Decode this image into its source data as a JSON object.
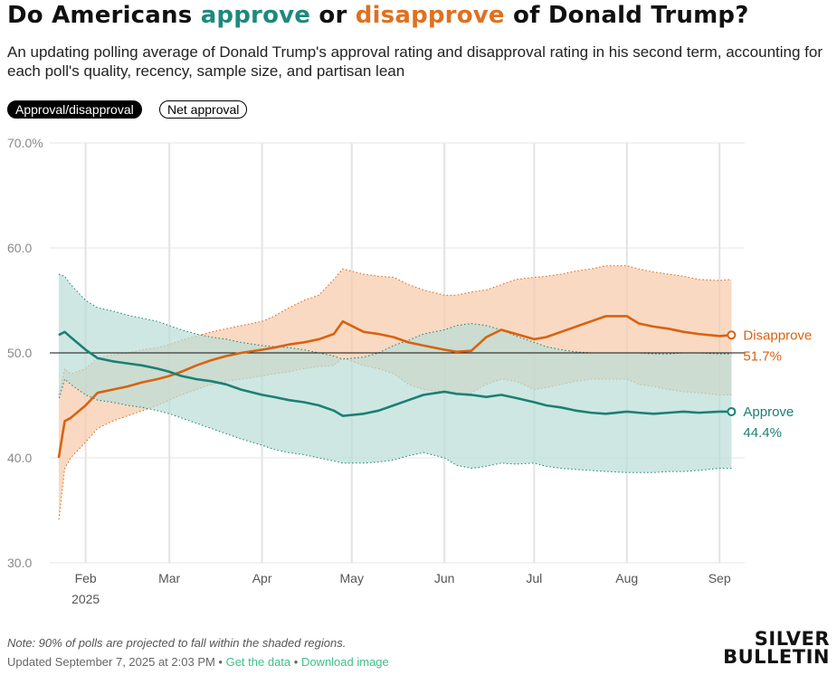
{
  "header": {
    "title_part1": "Do Americans ",
    "title_approve": "approve",
    "title_or": " or ",
    "title_disapprove": "disapprove",
    "title_part2": " of Donald Trump?",
    "subtitle": "An updating polling average of Donald Trump's approval rating and disapproval rating in his second term, accounting for each poll's quality, recency, sample size, and partisan lean"
  },
  "toggles": {
    "active_label": "Approval/disapproval",
    "inactive_label": "Net approval"
  },
  "colors": {
    "approve": "#1b8074",
    "disapprove": "#d9620e",
    "approve_band": "#b9ddd6",
    "disapprove_band": "#f7c9a8"
  },
  "chart_data": {
    "type": "line",
    "title": "Do Americans approve or disapprove of Donald Trump?",
    "y_tick_labels": [
      "70.0%",
      "60.0",
      "50.0",
      "40.0",
      "30.0"
    ],
    "y_ticks": [
      70,
      60,
      50,
      40,
      30
    ],
    "ylim": [
      30,
      70
    ],
    "xlim": [
      "2025-01-20",
      "2025-09-07"
    ],
    "x_ticks": [
      {
        "date": "2025-02-01",
        "label": "Feb",
        "sublabel": "2025"
      },
      {
        "date": "2025-03-01",
        "label": "Mar",
        "sublabel": ""
      },
      {
        "date": "2025-04-01",
        "label": "Apr",
        "sublabel": ""
      },
      {
        "date": "2025-05-01",
        "label": "May",
        "sublabel": ""
      },
      {
        "date": "2025-06-01",
        "label": "Jun",
        "sublabel": ""
      },
      {
        "date": "2025-07-01",
        "label": "Jul",
        "sublabel": ""
      },
      {
        "date": "2025-08-01",
        "label": "Aug",
        "sublabel": ""
      },
      {
        "date": "2025-09-01",
        "label": "Sep",
        "sublabel": ""
      }
    ],
    "reference_line": 50,
    "grid": true,
    "series": [
      {
        "name": "Disapprove",
        "end_label": "Disapprove",
        "end_value_label": "51.7%",
        "x": [
          "2025-01-23",
          "2025-01-25",
          "2025-01-27",
          "2025-02-01",
          "2025-02-05",
          "2025-02-10",
          "2025-02-15",
          "2025-02-20",
          "2025-02-25",
          "2025-03-01",
          "2025-03-05",
          "2025-03-10",
          "2025-03-15",
          "2025-03-20",
          "2025-03-25",
          "2025-04-01",
          "2025-04-05",
          "2025-04-10",
          "2025-04-15",
          "2025-04-20",
          "2025-04-25",
          "2025-04-28",
          "2025-05-05",
          "2025-05-10",
          "2025-05-15",
          "2025-05-20",
          "2025-05-25",
          "2025-06-01",
          "2025-06-05",
          "2025-06-10",
          "2025-06-15",
          "2025-06-20",
          "2025-06-25",
          "2025-07-01",
          "2025-07-05",
          "2025-07-10",
          "2025-07-15",
          "2025-07-20",
          "2025-07-25",
          "2025-08-01",
          "2025-08-05",
          "2025-08-10",
          "2025-08-15",
          "2025-08-20",
          "2025-08-25",
          "2025-09-01",
          "2025-09-05"
        ],
        "values": [
          40.0,
          43.5,
          43.8,
          45.0,
          46.2,
          46.5,
          46.8,
          47.2,
          47.5,
          47.8,
          48.2,
          48.8,
          49.3,
          49.7,
          50.0,
          50.3,
          50.5,
          50.8,
          51.0,
          51.3,
          51.8,
          53.0,
          52.0,
          51.8,
          51.5,
          51.0,
          50.7,
          50.3,
          50.1,
          50.2,
          51.5,
          52.2,
          51.8,
          51.3,
          51.5,
          52.0,
          52.5,
          53.0,
          53.5,
          53.5,
          52.8,
          52.5,
          52.3,
          52.0,
          51.8,
          51.6,
          51.7
        ],
        "lower": [
          34.0,
          39.0,
          40.0,
          41.5,
          42.8,
          43.5,
          44.0,
          44.5,
          45.0,
          45.5,
          46.0,
          46.5,
          47.0,
          47.3,
          47.5,
          47.8,
          48.0,
          48.2,
          48.5,
          48.7,
          48.8,
          49.5,
          48.8,
          48.5,
          48.0,
          47.0,
          46.5,
          46.3,
          46.0,
          46.2,
          47.0,
          47.5,
          47.3,
          46.5,
          46.7,
          47.0,
          47.3,
          47.5,
          47.5,
          47.5,
          47.0,
          46.8,
          46.5,
          46.3,
          46.2,
          46.0,
          46.0
        ],
        "upper": [
          46.0,
          48.5,
          48.0,
          48.5,
          49.5,
          49.8,
          50.0,
          50.3,
          50.5,
          50.8,
          51.2,
          51.6,
          52.0,
          52.3,
          52.6,
          53.0,
          53.5,
          54.3,
          55.0,
          55.5,
          57.0,
          58.0,
          57.5,
          57.3,
          57.2,
          56.5,
          56.0,
          55.5,
          55.5,
          55.8,
          56.0,
          56.5,
          57.0,
          57.2,
          57.3,
          57.5,
          57.8,
          58.0,
          58.3,
          58.3,
          58.0,
          57.7,
          57.5,
          57.3,
          57.0,
          56.9,
          57.0
        ]
      },
      {
        "name": "Approve",
        "end_label": "Approve",
        "end_value_label": "44.4%",
        "x": [
          "2025-01-23",
          "2025-01-25",
          "2025-01-27",
          "2025-02-01",
          "2025-02-05",
          "2025-02-10",
          "2025-02-15",
          "2025-02-20",
          "2025-02-25",
          "2025-03-01",
          "2025-03-05",
          "2025-03-10",
          "2025-03-15",
          "2025-03-20",
          "2025-03-25",
          "2025-04-01",
          "2025-04-05",
          "2025-04-10",
          "2025-04-15",
          "2025-04-20",
          "2025-04-25",
          "2025-04-28",
          "2025-05-05",
          "2025-05-10",
          "2025-05-15",
          "2025-05-20",
          "2025-05-25",
          "2025-06-01",
          "2025-06-05",
          "2025-06-10",
          "2025-06-15",
          "2025-06-20",
          "2025-06-25",
          "2025-07-01",
          "2025-07-05",
          "2025-07-10",
          "2025-07-15",
          "2025-07-20",
          "2025-07-25",
          "2025-08-01",
          "2025-08-05",
          "2025-08-10",
          "2025-08-15",
          "2025-08-20",
          "2025-08-25",
          "2025-09-01",
          "2025-09-05"
        ],
        "values": [
          51.7,
          52.0,
          51.5,
          50.3,
          49.5,
          49.2,
          49.0,
          48.8,
          48.5,
          48.2,
          47.8,
          47.5,
          47.3,
          47.0,
          46.5,
          46.0,
          45.8,
          45.5,
          45.3,
          45.0,
          44.5,
          44.0,
          44.2,
          44.5,
          45.0,
          45.5,
          46.0,
          46.3,
          46.1,
          46.0,
          45.8,
          46.0,
          45.7,
          45.3,
          45.0,
          44.8,
          44.5,
          44.3,
          44.2,
          44.4,
          44.3,
          44.2,
          44.3,
          44.4,
          44.3,
          44.4,
          44.4
        ],
        "lower": [
          45.5,
          47.5,
          47.0,
          46.0,
          45.5,
          45.3,
          45.0,
          44.8,
          44.5,
          44.2,
          43.8,
          43.3,
          42.8,
          42.3,
          41.8,
          41.2,
          40.8,
          40.5,
          40.3,
          40.0,
          39.7,
          39.5,
          39.5,
          39.6,
          39.8,
          40.2,
          40.5,
          40.0,
          39.3,
          39.0,
          39.2,
          39.5,
          39.4,
          39.5,
          39.2,
          39.0,
          38.9,
          38.8,
          38.7,
          38.6,
          38.6,
          38.6,
          38.7,
          38.7,
          38.8,
          39.0,
          39.0
        ],
        "upper": [
          57.5,
          57.3,
          56.5,
          55.0,
          54.3,
          54.0,
          53.6,
          53.3,
          53.0,
          52.6,
          52.2,
          51.8,
          51.5,
          51.3,
          51.0,
          50.7,
          50.6,
          50.5,
          50.3,
          50.0,
          49.7,
          49.4,
          49.6,
          50.0,
          50.7,
          51.2,
          51.8,
          52.2,
          52.6,
          52.8,
          52.6,
          52.2,
          51.6,
          51.0,
          50.6,
          50.3,
          50.1,
          50.0,
          50.0,
          50.0,
          50.0,
          49.9,
          49.9,
          50.0,
          50.0,
          49.9,
          49.9
        ]
      }
    ]
  },
  "footer": {
    "note": "Note: 90% of polls are projected to fall within the shaded regions.",
    "updated": "Updated September 7, 2025 at 2:03 PM • ",
    "get_data": "Get the data",
    "separator": " • ",
    "download": "Download image"
  },
  "logo": {
    "line1": "SILVER",
    "line2": "BULLETIN"
  }
}
